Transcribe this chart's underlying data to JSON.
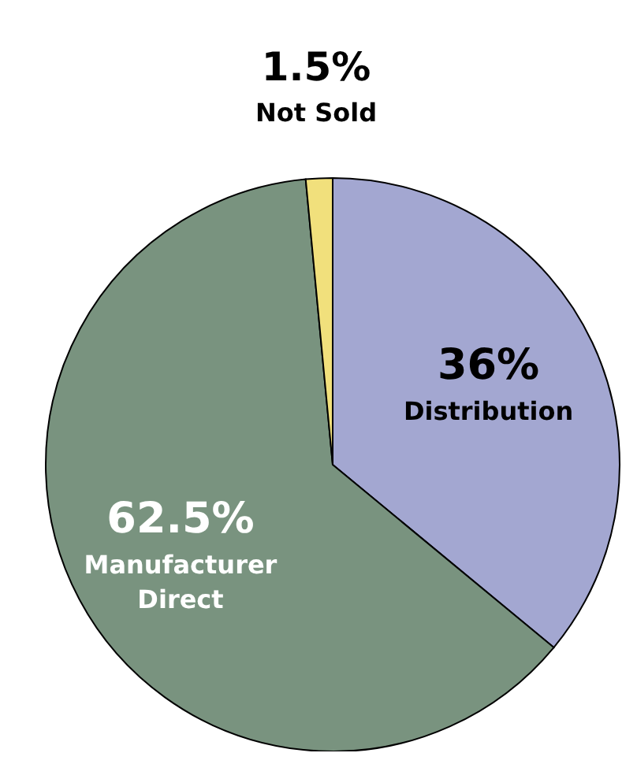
{
  "chart_data": {
    "type": "pie",
    "categories": [
      "Distribution",
      "Manufacturer Direct",
      "Not Sold"
    ],
    "values": [
      36,
      62.5,
      1.5
    ],
    "colors": [
      "#a3a7d1",
      "#79937f",
      "#f1e07c"
    ],
    "value_labels": [
      "36%",
      "62.5%",
      "1.5%"
    ]
  }
}
